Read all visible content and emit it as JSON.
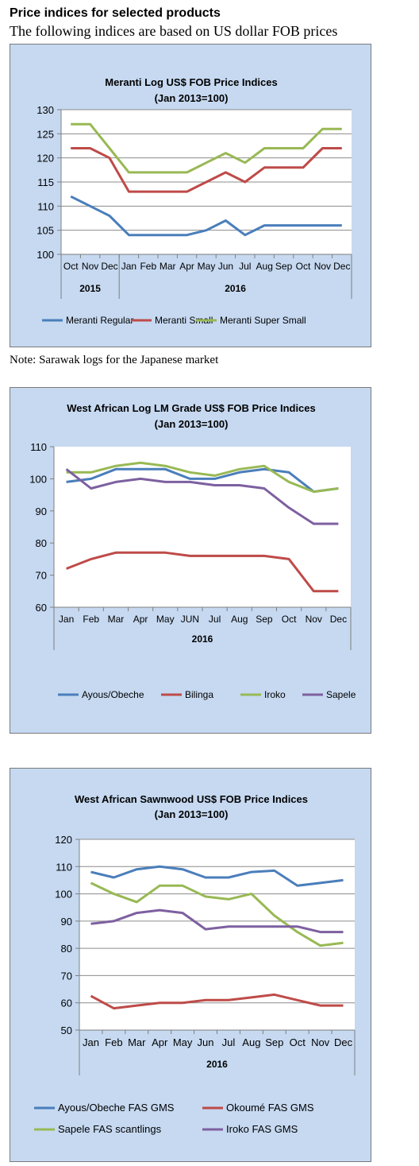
{
  "page": {
    "heading": "Price indices for selected products",
    "subheading": "The following indices are based on US dollar FOB prices",
    "note": "Note: Sarawak logs for the Japanese market"
  },
  "chart_data": [
    {
      "type": "line",
      "title": "Meranti Log US$ FOB Price Indices",
      "subtitle": "(Jan 2013=100)",
      "categories": [
        "Oct",
        "Nov",
        "Dec",
        "Jan",
        "Feb",
        "Mar",
        "Apr",
        "May",
        "Jun",
        "Jul",
        "Aug",
        "Sep",
        "Oct",
        "Nov",
        "Dec"
      ],
      "year_groups": [
        {
          "label": "2015",
          "count": 3
        },
        {
          "label": "2016",
          "count": 12
        }
      ],
      "ylim": [
        100,
        130
      ],
      "yticks": [
        100,
        105,
        110,
        115,
        120,
        125,
        130
      ],
      "grid": true,
      "legend": "bottom",
      "series": [
        {
          "name": "Meranti Regular",
          "color": "#4a7ebb",
          "values": [
            112,
            110,
            108,
            104,
            104,
            104,
            104,
            105,
            107,
            104,
            106,
            106,
            106,
            106,
            106
          ]
        },
        {
          "name": "Meranti Small",
          "color": "#be4b48",
          "values": [
            122,
            122,
            120,
            113,
            113,
            113,
            113,
            115,
            117,
            115,
            118,
            118,
            118,
            122,
            122
          ]
        },
        {
          "name": "Meranti Super Small",
          "color": "#98b954",
          "values": [
            127,
            127,
            122,
            117,
            117,
            117,
            117,
            119,
            121,
            119,
            122,
            122,
            122,
            126,
            126
          ]
        }
      ]
    },
    {
      "type": "line",
      "title": "West African Log LM Grade US$ FOB Price Indices",
      "subtitle": "(Jan 2013=100)",
      "categories": [
        "Jan",
        "Feb",
        "Mar",
        "Apr",
        "May",
        "JUN",
        "Jul",
        "Aug",
        "Sep",
        "Oct",
        "Nov",
        "Dec"
      ],
      "year_groups": [
        {
          "label": "2016",
          "count": 12
        }
      ],
      "ylim": [
        60,
        110
      ],
      "yticks": [
        60,
        70,
        80,
        90,
        100,
        110
      ],
      "grid": false,
      "legend": "bottom",
      "series": [
        {
          "name": "Ayous/Obeche",
          "color": "#4a7ebb",
          "values": [
            99,
            100,
            103,
            103,
            103,
            100,
            100,
            102,
            103,
            102,
            96,
            97
          ]
        },
        {
          "name": "Bilinga",
          "color": "#be4b48",
          "values": [
            72,
            75,
            77,
            77,
            77,
            76,
            76,
            76,
            76,
            75,
            65,
            65
          ]
        },
        {
          "name": "Iroko",
          "color": "#98b954",
          "values": [
            102,
            102,
            104,
            105,
            104,
            102,
            101,
            103,
            104,
            99,
            96,
            97
          ]
        },
        {
          "name": "Sapele",
          "color": "#7d60a0",
          "values": [
            103,
            97,
            99,
            100,
            99,
            99,
            98,
            98,
            97,
            91,
            86,
            86
          ]
        }
      ]
    },
    {
      "type": "line",
      "title": "West African Sawnwood US$ FOB Price Indices",
      "subtitle": "(Jan 2013=100)",
      "categories": [
        "Jan",
        "Feb",
        "Mar",
        "Apr",
        "May",
        "Jun",
        "Jul",
        "Aug",
        "Sep",
        "Oct",
        "Nov",
        "Dec"
      ],
      "year_groups": [
        {
          "label": "2016",
          "count": 12
        }
      ],
      "ylim": [
        50,
        120
      ],
      "yticks": [
        50,
        60,
        70,
        80,
        90,
        100,
        110,
        120
      ],
      "grid": true,
      "legend": "bottom",
      "series": [
        {
          "name": "Ayous/Obeche  FAS GMS",
          "color": "#4a7ebb",
          "values": [
            108,
            106,
            109,
            110,
            109,
            106,
            106,
            108,
            108.5,
            103,
            104,
            105
          ]
        },
        {
          "name": "Okoumé  FAS GMS",
          "color": "#be4b48",
          "values": [
            62.5,
            58,
            59,
            60,
            60,
            61,
            61,
            62,
            63,
            61,
            59,
            59
          ]
        },
        {
          "name": "Sapele FAS scantlings",
          "color": "#98b954",
          "values": [
            104,
            100,
            97,
            103,
            103,
            99,
            98,
            100,
            92,
            86,
            81,
            82
          ]
        },
        {
          "name": "Iroko FAS GMS",
          "color": "#7d60a0",
          "values": [
            89,
            90,
            93,
            94,
            93,
            87,
            88,
            88,
            88,
            88,
            86,
            86
          ]
        }
      ]
    }
  ]
}
